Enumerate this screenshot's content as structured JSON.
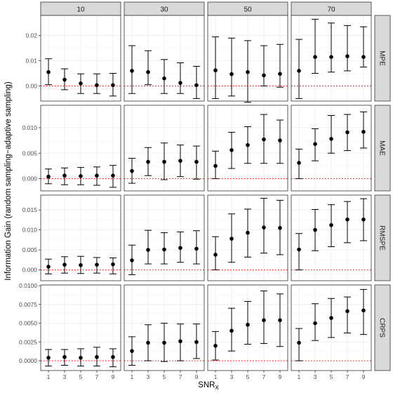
{
  "chart_data": {
    "type": "errorbar-facet-grid",
    "xlabel": "SNR",
    "xlabel_sub": "X",
    "ylabel": "Information Gain (random sampling−adaptive sampling)",
    "x_ticks": [
      1,
      3,
      5,
      7,
      9
    ],
    "columns": [
      "10",
      "30",
      "50",
      "70"
    ],
    "reference_line": {
      "y": 0,
      "style": "dotted",
      "color": "#ff0000"
    },
    "colors": {
      "strip": "#d9d9d9",
      "panel_border": "#333333",
      "grid": "#ebebeb",
      "point": "#000000"
    },
    "rows": [
      {
        "name": "MPE",
        "ylim": [
          -0.006,
          0.028
        ],
        "yticks": [
          0,
          0.01,
          0.02
        ],
        "ytick_labels": [
          "0.00",
          "0.01",
          "0.02"
        ],
        "panels": [
          {
            "mean": [
              0.0055,
              0.0025,
              0.001,
              0.0003,
              0.0003
            ],
            "lo": [
              0.0005,
              -0.0015,
              -0.003,
              -0.003,
              -0.004
            ],
            "hi": [
              0.0108,
              0.0068,
              0.0048,
              0.0048,
              0.005
            ]
          },
          {
            "mean": [
              0.006,
              0.0055,
              0.003,
              0.0012,
              0.0003
            ],
            "lo": [
              -0.003,
              0.0005,
              -0.003,
              -0.003,
              -0.005
            ],
            "hi": [
              0.016,
              0.014,
              0.0105,
              0.0092,
              0.0078
            ]
          },
          {
            "mean": [
              0.0062,
              0.0047,
              0.0055,
              0.0042,
              0.0048
            ],
            "lo": [
              -0.005,
              -0.004,
              -0.0065,
              0.0,
              -0.0005
            ],
            "hi": [
              0.0195,
              0.019,
              0.018,
              0.016,
              0.0165
            ]
          },
          {
            "mean": [
              0.006,
              0.0115,
              0.0115,
              0.0118,
              0.0115
            ],
            "lo": [
              -0.005,
              0.005,
              0.0055,
              0.006,
              0.0075
            ],
            "hi": [
              0.0185,
              0.0265,
              0.025,
              0.024,
              0.0235
            ]
          }
        ]
      },
      {
        "name": "MAE",
        "ylim": [
          -0.0024,
          0.0144
        ],
        "yticks": [
          0,
          0.005,
          0.01
        ],
        "ytick_labels": [
          "0.000",
          "0.005",
          "0.010"
        ],
        "panels": [
          {
            "mean": [
              0.0004,
              0.0006,
              0.0005,
              0.0006,
              0.0006
            ],
            "lo": [
              -0.001,
              -0.0012,
              -0.0012,
              -0.0013,
              -0.0017
            ],
            "hi": [
              0.0019,
              0.0021,
              0.0022,
              0.0023,
              0.0026
            ]
          },
          {
            "mean": [
              0.0015,
              0.0033,
              0.0033,
              0.0035,
              0.0033
            ],
            "lo": [
              -0.0009,
              0.0006,
              -0.0002,
              0.0004,
              -0.0001
            ],
            "hi": [
              0.004,
              0.0061,
              0.007,
              0.0066,
              0.0064
            ]
          },
          {
            "mean": [
              0.0025,
              0.0056,
              0.0066,
              0.0077,
              0.0075
            ],
            "lo": [
              0.0,
              0.002,
              0.003,
              0.003,
              0.003
            ],
            "hi": [
              0.0054,
              0.0091,
              0.0102,
              0.0126,
              0.0115
            ]
          },
          {
            "mean": [
              0.0031,
              0.0068,
              0.0078,
              0.0091,
              0.0092
            ],
            "lo": [
              0.0,
              0.0035,
              0.005,
              0.0055,
              0.006
            ],
            "hi": [
              0.0058,
              0.0098,
              0.0124,
              0.0126,
              0.0131
            ]
          }
        ]
      },
      {
        "name": "RMSPE",
        "ylim": [
          -0.0027,
          0.0187
        ],
        "yticks": [
          0,
          0.005,
          0.01,
          0.015
        ],
        "ytick_labels": [
          "0.000",
          "0.005",
          "0.010",
          "0.015"
        ],
        "panels": [
          {
            "mean": [
              0.0008,
              0.0013,
              0.0012,
              0.0013,
              0.0014
            ],
            "lo": [
              -0.001,
              -0.0008,
              -0.0009,
              -0.0008,
              -0.001
            ],
            "hi": [
              0.0027,
              0.0033,
              0.0034,
              0.0031,
              0.003
            ]
          },
          {
            "mean": [
              0.0024,
              0.005,
              0.0051,
              0.0055,
              0.0053
            ],
            "lo": [
              -0.0012,
              0.0015,
              0.0015,
              0.0019,
              0.0015
            ],
            "hi": [
              0.0062,
              0.0099,
              0.0093,
              0.0095,
              0.0098
            ]
          },
          {
            "mean": [
              0.0038,
              0.0078,
              0.0093,
              0.0106,
              0.0105
            ],
            "lo": [
              0.0,
              0.0019,
              0.0032,
              0.0042,
              0.0038
            ],
            "hi": [
              0.0083,
              0.014,
              0.0152,
              0.0179,
              0.0174
            ]
          },
          {
            "mean": [
              0.0051,
              0.01,
              0.0112,
              0.0126,
              0.0126
            ],
            "lo": [
              0.0,
              0.0048,
              0.0058,
              0.0068,
              0.0073
            ],
            "hi": [
              0.0091,
              0.0151,
              0.0163,
              0.0171,
              0.0178
            ]
          }
        ]
      },
      {
        "name": "CRPS",
        "ylim": [
          -0.0013,
          0.0101
        ],
        "yticks": [
          0,
          0.0025,
          0.005,
          0.0075,
          0.01
        ],
        "ytick_labels": [
          "0.0000",
          "0.0025",
          "0.0050",
          "0.0075",
          "0.0100"
        ],
        "panels": [
          {
            "mean": [
              0.0004,
              0.0005,
              0.0004,
              0.0005,
              0.0005
            ],
            "lo": [
              -0.0007,
              -0.0006,
              -0.0007,
              -0.0007,
              -0.0008
            ],
            "hi": [
              0.0015,
              0.0015,
              0.0016,
              0.0018,
              0.0016
            ]
          },
          {
            "mean": [
              0.0013,
              0.0024,
              0.0024,
              0.0026,
              0.0025
            ],
            "lo": [
              -0.0006,
              0.0,
              -0.0001,
              0.0,
              0.0003
            ],
            "hi": [
              0.0032,
              0.0048,
              0.005,
              0.0049,
              0.0049
            ]
          },
          {
            "mean": [
              0.002,
              0.004,
              0.0048,
              0.0054,
              0.0054
            ],
            "lo": [
              0.0001,
              0.0013,
              0.0022,
              0.0023,
              0.0019
            ],
            "hi": [
              0.0039,
              0.007,
              0.0079,
              0.0093,
              0.0089
            ]
          },
          {
            "mean": [
              0.0024,
              0.005,
              0.0057,
              0.0066,
              0.0067
            ],
            "lo": [
              0.0,
              0.0027,
              0.0031,
              0.0037,
              0.0035
            ],
            "hi": [
              0.0043,
              0.0076,
              0.0083,
              0.0085,
              0.0095
            ]
          }
        ]
      }
    ]
  }
}
